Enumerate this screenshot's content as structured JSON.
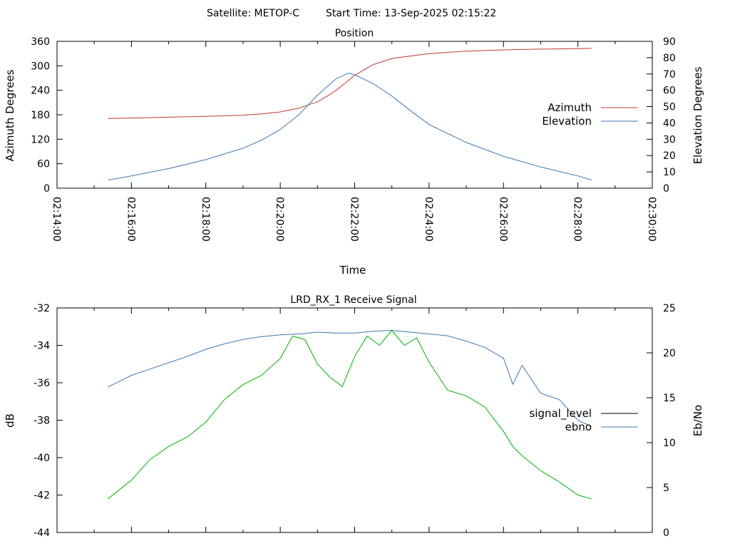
{
  "header": {
    "satellite": "Satellite: METOP-C",
    "start_time": "Start Time: 13-Sep-2025 02:15:22"
  },
  "chart_data": [
    {
      "type": "line",
      "title": "Position",
      "xlabel": "Time",
      "ylabel": "Azimuth Degrees",
      "y2label": "Elevation Degrees",
      "xlim": [
        "02:14:00",
        "02:30:00"
      ],
      "x_ticks": [
        "02:14:00",
        "02:16:00",
        "02:18:00",
        "02:20:00",
        "02:22:00",
        "02:24:00",
        "02:26:00",
        "02:28:00",
        "02:30:00"
      ],
      "ylim": [
        0,
        360
      ],
      "y_ticks": [
        "0",
        "60",
        "120",
        "180",
        "240",
        "300",
        "360"
      ],
      "y2lim": [
        0,
        90
      ],
      "y2_ticks": [
        "0",
        "10",
        "20",
        "30",
        "40",
        "50",
        "60",
        "70",
        "80",
        "90"
      ],
      "legend_position": "right",
      "grid": false,
      "series": [
        {
          "name": "Azimuth",
          "axis": "y",
          "color": "#c0392b",
          "x": [
            "02:15:22",
            "02:16:00",
            "02:17:00",
            "02:18:00",
            "02:19:00",
            "02:19:30",
            "02:20:00",
            "02:20:30",
            "02:21:00",
            "02:21:15",
            "02:21:30",
            "02:21:45",
            "02:22:00",
            "02:22:30",
            "02:23:00",
            "02:24:00",
            "02:25:00",
            "02:26:00",
            "02:27:00",
            "02:28:00",
            "02:28:22"
          ],
          "values": [
            171,
            172,
            174,
            176,
            179,
            182,
            187,
            196,
            212,
            225,
            240,
            258,
            277,
            303,
            318,
            330,
            336,
            339,
            341,
            342,
            343
          ]
        },
        {
          "name": "Elevation",
          "axis": "y2",
          "color": "#3a78b5",
          "x": [
            "02:15:22",
            "02:16:00",
            "02:17:00",
            "02:18:00",
            "02:19:00",
            "02:19:30",
            "02:20:00",
            "02:20:30",
            "02:21:00",
            "02:21:30",
            "02:21:50",
            "02:22:00",
            "02:22:30",
            "02:23:00",
            "02:23:30",
            "02:24:00",
            "02:25:00",
            "02:26:00",
            "02:27:00",
            "02:28:00",
            "02:28:22"
          ],
          "values": [
            5,
            7.5,
            12,
            17.5,
            24.5,
            29.5,
            36,
            45,
            57,
            67,
            70.5,
            69.5,
            64,
            56.5,
            47.5,
            39,
            28,
            19.5,
            13,
            7.5,
            5
          ]
        }
      ]
    },
    {
      "type": "line",
      "title": "LRD_RX_1 Receive Signal",
      "ylabel": "dB",
      "y2label": "Eb/No",
      "xlim": [
        "02:14:00",
        "02:30:00"
      ],
      "ylim": [
        -44,
        -32
      ],
      "y_ticks": [
        "-32",
        "-34",
        "-36",
        "-38",
        "-40",
        "-42",
        "-44"
      ],
      "y2lim": [
        0,
        25
      ],
      "y2_ticks": [
        "0",
        "5",
        "10",
        "15",
        "20",
        "25"
      ],
      "legend_position": "right",
      "grid": false,
      "series": [
        {
          "name": "signal_level",
          "axis": "y",
          "color": "#000000",
          "x": [],
          "values": []
        },
        {
          "name": "ebno",
          "axis": "y2",
          "color": "#3a78b5",
          "x": [
            "02:15:22",
            "02:15:40",
            "02:16:00",
            "02:16:30",
            "02:17:00",
            "02:17:30",
            "02:18:00",
            "02:18:30",
            "02:19:00",
            "02:19:30",
            "02:20:00",
            "02:20:30",
            "02:21:00",
            "02:21:30",
            "02:22:00",
            "02:22:30",
            "02:23:00",
            "02:23:30",
            "02:24:00",
            "02:24:30",
            "02:25:00",
            "02:25:30",
            "02:26:00",
            "02:26:15",
            "02:26:30",
            "02:27:00",
            "02:27:30",
            "02:28:00",
            "02:28:22"
          ],
          "values": [
            16.2,
            16.8,
            17.5,
            18.2,
            18.9,
            19.6,
            20.4,
            21.0,
            21.5,
            21.8,
            22.0,
            22.1,
            22.3,
            22.2,
            22.2,
            22.4,
            22.5,
            22.3,
            22.1,
            21.9,
            21.3,
            20.6,
            19.4,
            16.5,
            18.6,
            15.5,
            14.8,
            12.5,
            11.8
          ]
        },
        {
          "name": "",
          "axis": "y",
          "color": "#00b000",
          "x": [
            "02:15:22",
            "02:16:00",
            "02:16:30",
            "02:17:00",
            "02:17:30",
            "02:18:00",
            "02:18:30",
            "02:19:00",
            "02:19:30",
            "02:20:00",
            "02:20:20",
            "02:20:40",
            "02:21:00",
            "02:21:20",
            "02:21:40",
            "02:22:00",
            "02:22:20",
            "02:22:40",
            "02:23:00",
            "02:23:20",
            "02:23:40",
            "02:24:00",
            "02:24:30",
            "02:25:00",
            "02:25:30",
            "02:26:00",
            "02:26:15",
            "02:26:30",
            "02:27:00",
            "02:27:30",
            "02:28:00",
            "02:28:22"
          ],
          "values": [
            -42.2,
            -41.2,
            -40.1,
            -39.4,
            -38.9,
            -38.1,
            -36.9,
            -36.1,
            -35.6,
            -34.7,
            -33.5,
            -33.7,
            -35.0,
            -35.7,
            -36.2,
            -34.6,
            -33.5,
            -34.0,
            -33.2,
            -34.0,
            -33.6,
            -34.9,
            -36.4,
            -36.7,
            -37.3,
            -38.6,
            -39.4,
            -39.9,
            -40.7,
            -41.3,
            -42.0,
            -42.2
          ]
        }
      ]
    }
  ]
}
